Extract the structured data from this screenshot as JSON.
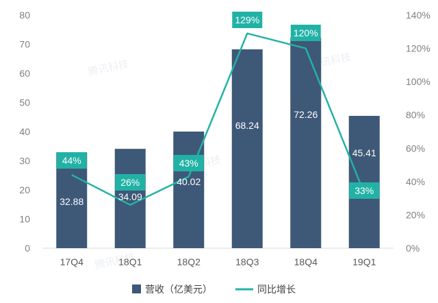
{
  "chart_data": {
    "type": "bar",
    "categories": [
      "17Q4",
      "18Q1",
      "18Q2",
      "18Q3",
      "18Q4",
      "19Q1"
    ],
    "series": [
      {
        "name": "营收（亿美元）",
        "type": "bar",
        "axis": "left",
        "values": [
          32.88,
          34.09,
          40.02,
          68.24,
          72.26,
          45.41
        ],
        "labels": [
          "32.88",
          "34.09",
          "40.02",
          "68.24",
          "72.26",
          "45.41"
        ],
        "color": "#3e5877"
      },
      {
        "name": "同比增长",
        "type": "line",
        "axis": "right",
        "values": [
          44,
          26,
          43,
          129,
          120,
          33
        ],
        "labels": [
          "44%",
          "26%",
          "43%",
          "129%",
          "120%",
          "33%"
        ],
        "color": "#22b2a5"
      }
    ],
    "y_left": {
      "min": 0,
      "max": 80,
      "ticks": [
        "0",
        "10",
        "20",
        "30",
        "40",
        "50",
        "60",
        "70",
        "80"
      ]
    },
    "y_right": {
      "min": 0,
      "max": 140,
      "ticks": [
        "0%",
        "20%",
        "40%",
        "60%",
        "80%",
        "100%",
        "120%",
        "140%"
      ]
    },
    "grid": false,
    "legend_position": "bottom",
    "watermark": "腾讯科技"
  }
}
